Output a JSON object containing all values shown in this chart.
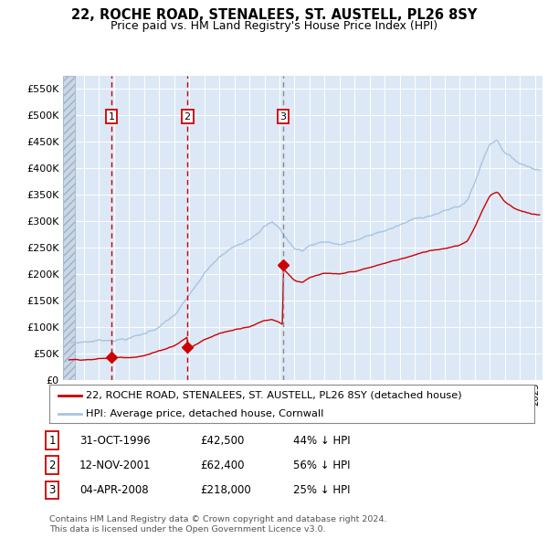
{
  "title": "22, ROCHE ROAD, STENALEES, ST. AUSTELL, PL26 8SY",
  "subtitle": "Price paid vs. HM Land Registry's House Price Index (HPI)",
  "legend_line1": "22, ROCHE ROAD, STENALEES, ST. AUSTELL, PL26 8SY (detached house)",
  "legend_line2": "HPI: Average price, detached house, Cornwall",
  "footer1": "Contains HM Land Registry data © Crown copyright and database right 2024.",
  "footer2": "This data is licensed under the Open Government Licence v3.0.",
  "sale_times": [
    1996.833,
    2001.875,
    2008.25
  ],
  "sale_prices": [
    42500,
    62400,
    218000
  ],
  "sale_labels": [
    "1",
    "2",
    "3"
  ],
  "table_rows": [
    [
      "1",
      "31-OCT-1996",
      "£42,500",
      "44% ↓ HPI"
    ],
    [
      "2",
      "12-NOV-2001",
      "£62,400",
      "56% ↓ HPI"
    ],
    [
      "3",
      "04-APR-2008",
      "£218,000",
      "25% ↓ HPI"
    ]
  ],
  "hpi_color": "#a8c4e0",
  "sale_color": "#cc0000",
  "vline_color_red": "#cc0000",
  "vline_color_grey": "#888888",
  "ylim": [
    0,
    575000
  ],
  "yticks": [
    0,
    50000,
    100000,
    150000,
    200000,
    250000,
    300000,
    350000,
    400000,
    450000,
    500000,
    550000
  ],
  "xlim_start": 1993.6,
  "xlim_end": 2025.5,
  "background_plot": "#dce8f5",
  "hatch_end": 1994.42
}
